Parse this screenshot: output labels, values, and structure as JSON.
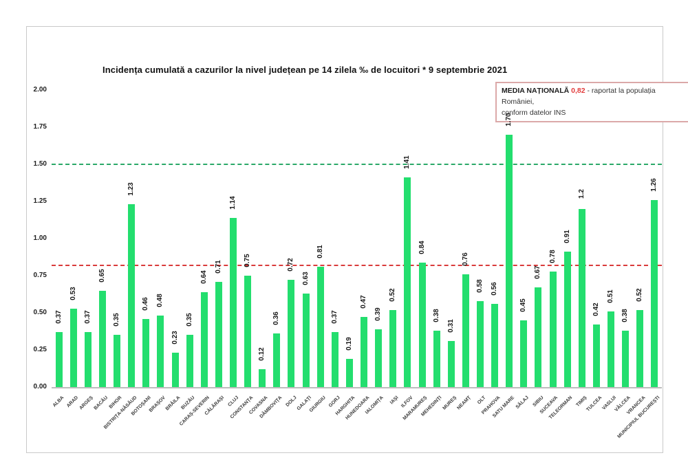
{
  "title": "Incidența cumulată a cazurilor la nivel județean pe 14 zilela ‰ de locuitori * 9 septembrie 2021",
  "national_average_box": {
    "label": "MEDIA NAȚIONALĂ",
    "value": "0,82",
    "suffix": " - raportat la populația României,",
    "line2": "conform datelor INS"
  },
  "colors": {
    "bar": "#23de6e",
    "green_dashed_line": "#2aa868",
    "red_dashed_line": "#d93a3a",
    "value_red": "#e23b3b"
  },
  "chart_data": {
    "type": "bar",
    "title": "Incidența cumulată a cazurilor la nivel județean pe 14 zilela ‰ de locuitori * 9 septembrie 2021",
    "categories": [
      "ALBA",
      "ARAD",
      "ARGEȘ",
      "BACĂU",
      "BIHOR",
      "BISTRIȚA-NĂSĂUD",
      "BOTOȘANI",
      "BRAȘOV",
      "BRĂILA",
      "BUZĂU",
      "CARAȘ-SEVERIN",
      "CĂLĂRAȘI",
      "CLUJ",
      "CONSTANȚA",
      "COVASNA",
      "DÂMBOVIȚA",
      "DOLJ",
      "GALAȚI",
      "GIURGIU",
      "GORJ",
      "HARGHITA",
      "HUNEDOARA",
      "IALOMIȚA",
      "IAȘI",
      "ILFOV",
      "MARAMUREȘ",
      "MEHEDINȚI",
      "MUREȘ",
      "NEAMȚ",
      "OLT",
      "PRAHOVA",
      "SATU MARE",
      "SĂLAJ",
      "SIBIU",
      "SUCEAVA",
      "TELEORMAN",
      "TIMIȘ",
      "TULCEA",
      "VASLUI",
      "VÂLCEA",
      "VRANCEA",
      "MUNICIPIUL BUCUREȘTI"
    ],
    "values": [
      0.37,
      0.53,
      0.37,
      0.65,
      0.35,
      1.23,
      0.46,
      0.48,
      0.23,
      0.35,
      0.64,
      0.71,
      1.14,
      0.75,
      0.12,
      0.36,
      0.72,
      0.63,
      0.81,
      0.37,
      0.19,
      0.47,
      0.39,
      0.52,
      1.41,
      0.84,
      0.38,
      0.31,
      0.76,
      0.58,
      0.56,
      1.7,
      0.45,
      0.67,
      0.78,
      0.91,
      1.2,
      0.42,
      0.51,
      0.38,
      0.52,
      1.26
    ],
    "value_labels": [
      "0.37",
      "0.53",
      "0.37",
      "0.65",
      "0.35",
      "1.23",
      "0.46",
      "0.48",
      "0.23",
      "0.35",
      "0.64",
      "0.71",
      "1.14",
      "0.75",
      "0.12",
      "0.36",
      "0.72",
      "0.63",
      "0.81",
      "0.37",
      "0.19",
      "0.47",
      "0.39",
      "0.52",
      "1.41",
      "0.84",
      "0.38",
      "0.31",
      "0.76",
      "0.58",
      "0.56",
      "1.70",
      "0.45",
      "0.67",
      "0.78",
      "0.91",
      "1.2",
      "0.42",
      "0.51",
      "0.38",
      "0.52",
      "1.26"
    ],
    "ylim": [
      0,
      2
    ],
    "yticks": [
      "2.00",
      "1.75",
      "1.50",
      "1.25",
      "1.00",
      "0.75",
      "0.50",
      "0.25",
      "0.00"
    ],
    "grid": false,
    "legend": "none",
    "reference_lines": [
      {
        "value": 1.5,
        "style": "dashed",
        "color_key": "green_dashed_line"
      },
      {
        "value": 0.82,
        "style": "dashed",
        "color_key": "red_dashed_line"
      }
    ]
  }
}
